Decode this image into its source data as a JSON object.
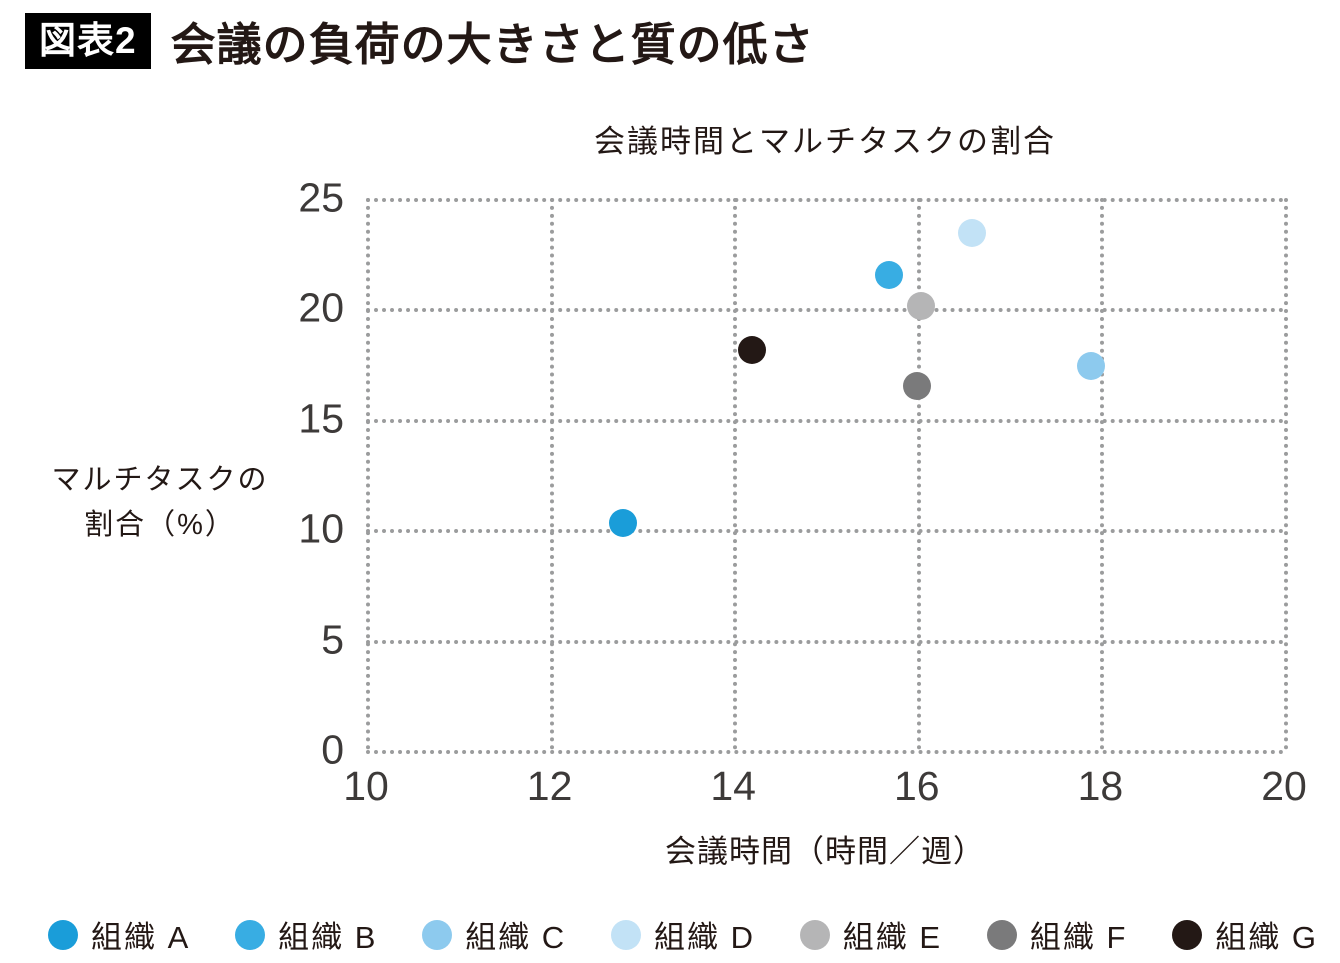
{
  "header": {
    "badge": "図表2",
    "title": "会議の負荷の大きさと質の低さ"
  },
  "chart_data": {
    "type": "scatter",
    "title": "会議時間とマルチタスクの割合",
    "xlabel": "会議時間（時間／週）",
    "ylabel_lines": [
      "マルチタスクの",
      "割合（%）"
    ],
    "xlim": [
      10,
      20
    ],
    "ylim": [
      0,
      25
    ],
    "x_ticks": [
      10,
      12,
      14,
      16,
      18,
      20
    ],
    "y_ticks": [
      0,
      5,
      10,
      15,
      20,
      25
    ],
    "grid": true,
    "grid_style": "dotted",
    "grid_color": "#9b9c9d",
    "legend_position": "bottom",
    "series": [
      {
        "id": "a",
        "name": "組織 A",
        "color": "#1a9dd9",
        "x": 12.8,
        "y": 10.3
      },
      {
        "id": "b",
        "name": "組織 B",
        "color": "#38ade3",
        "x": 15.7,
        "y": 21.5
      },
      {
        "id": "c",
        "name": "組織 C",
        "color": "#8dcaee",
        "x": 17.9,
        "y": 17.4
      },
      {
        "id": "d",
        "name": "組織 D",
        "color": "#c2e2f6",
        "x": 16.6,
        "y": 23.4
      },
      {
        "id": "e",
        "name": "組織 E",
        "color": "#b5b5b6",
        "x": 16.05,
        "y": 20.1
      },
      {
        "id": "f",
        "name": "組織 F",
        "color": "#7a7a7b",
        "x": 16.0,
        "y": 16.5
      },
      {
        "id": "g",
        "name": "組織 G",
        "color": "#231815",
        "x": 14.2,
        "y": 18.1
      }
    ]
  }
}
